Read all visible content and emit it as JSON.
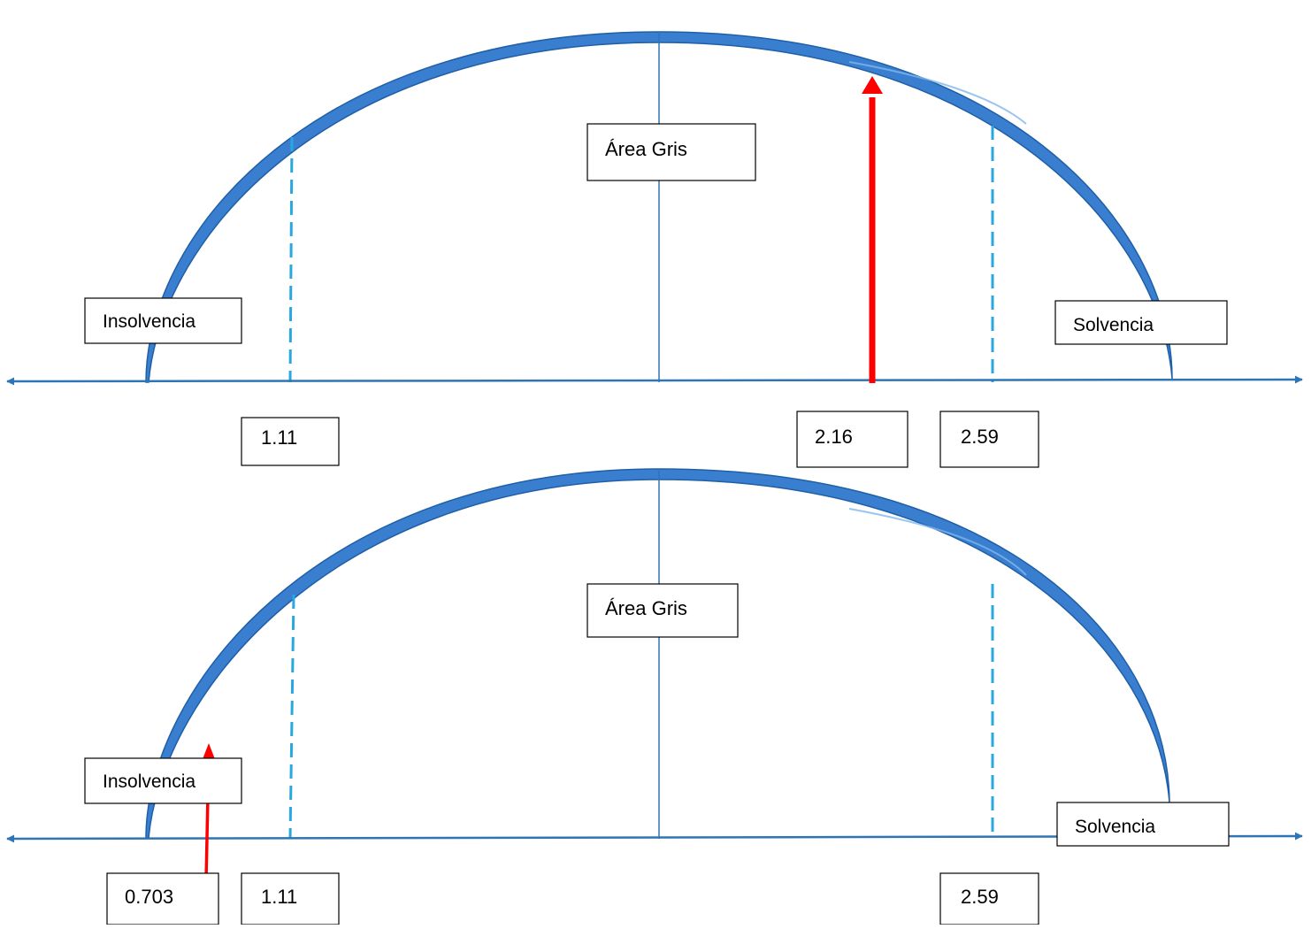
{
  "colors": {
    "arc_fill": "#3a7fcf",
    "arc_edge": "#1f5fa8",
    "arc_highlight": "#7fb6ee",
    "axis": "#2e75b6",
    "center_line": "#2e75b6",
    "dashed_line": "#29a8e0",
    "indicator": "#ff0000",
    "box_border": "#000000",
    "text": "#000000"
  },
  "panels": [
    {
      "gray_area_label": "Área Gris",
      "insolvency_label": "Insolvencia",
      "solvency_label": "Solvencia",
      "lower_threshold": "1.11",
      "upper_threshold": "2.59",
      "score": "2.16"
    },
    {
      "gray_area_label": "Área Gris",
      "insolvency_label": "Insolvencia",
      "solvency_label": "Solvencia",
      "lower_threshold": "1.11",
      "upper_threshold": "2.59",
      "score": "0.703"
    }
  ]
}
